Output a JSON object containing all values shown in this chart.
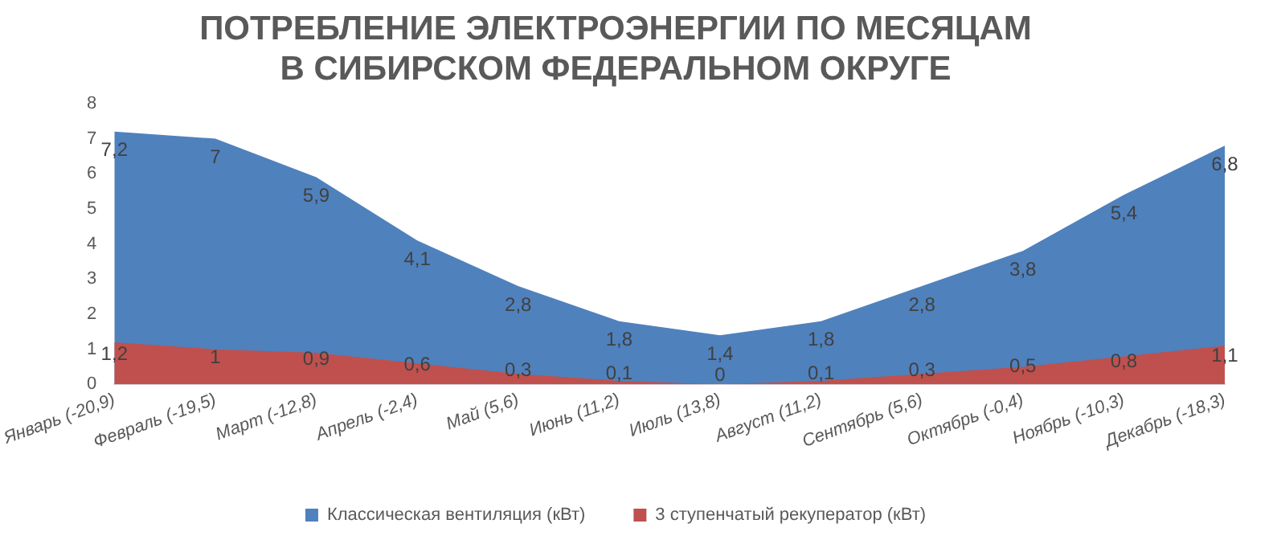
{
  "chart_data": {
    "type": "area",
    "title": "ПОТРЕБЛЕНИЕ ЭЛЕКТРОЭНЕРГИИ ПО МЕСЯЦАМ\nВ СИБИРСКОМ ФЕДЕРАЛЬНОМ ОКРУГЕ",
    "categories": [
      "Январь (-20,9)",
      "Февраль (-19,5)",
      "Март (-12,8)",
      "Апрель (-2,4)",
      "Май (5,6)",
      "Июнь (11,2)",
      "Июль (13,8)",
      "Август (11,2)",
      "Сентябрь (5,6)",
      "Октябрь (-0,4)",
      "Ноябрь (-10,3)",
      "Декабрь (-18,3)"
    ],
    "series": [
      {
        "name": "Классическая вентиляция (кВт)",
        "color": "#4f81bd",
        "values": [
          7.2,
          7,
          5.9,
          4.1,
          2.8,
          1.8,
          1.4,
          1.8,
          2.8,
          3.8,
          5.4,
          6.8
        ],
        "value_labels": [
          "7,2",
          "7",
          "5,9",
          "4,1",
          "2,8",
          "1,8",
          "1,4",
          "1,8",
          "2,8",
          "3,8",
          "5,4",
          "6,8"
        ]
      },
      {
        "name": "3 ступенчатый рекуператор (кВт)",
        "color": "#c0504d",
        "values": [
          1.2,
          1,
          0.9,
          0.6,
          0.3,
          0.1,
          0,
          0.1,
          0.3,
          0.5,
          0.8,
          1.1
        ],
        "value_labels": [
          "1,2",
          "1",
          "0,9",
          "0,6",
          "0,3",
          "0,1",
          "0",
          "0,1",
          "0,3",
          "0,5",
          "0,8",
          "1,1"
        ]
      }
    ],
    "ylim": [
      0,
      8
    ],
    "yticks": [
      0,
      1,
      2,
      3,
      4,
      5,
      6,
      7,
      8
    ],
    "grid": false,
    "legend": "bottom"
  }
}
